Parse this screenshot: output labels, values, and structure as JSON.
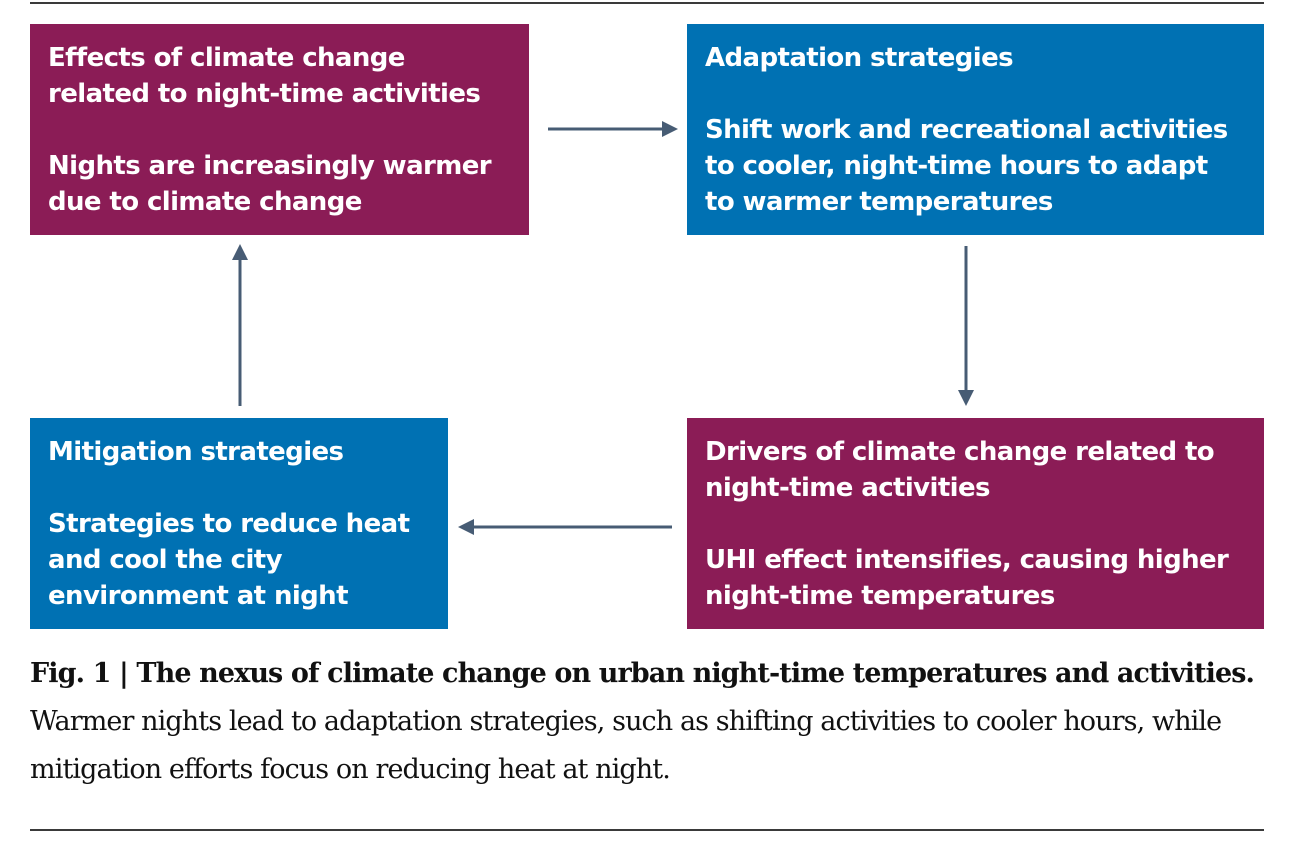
{
  "colors": {
    "effect_box": "#8b1c56",
    "strategy_box": "#0071b3",
    "arrow": "#475c74"
  },
  "boxes": {
    "effects": {
      "heading": [
        "Effects of climate change",
        "related to night-time activities"
      ],
      "body": [
        "Nights are increasingly warmer",
        "due to climate change"
      ]
    },
    "adaptation": {
      "heading": [
        "Adaptation strategies"
      ],
      "body": [
        "Shift work and recreational activities",
        "to cooler, night-time hours to adapt",
        "to warmer temperatures"
      ]
    },
    "mitigation": {
      "heading": [
        "Mitigation strategies"
      ],
      "body": [
        "Strategies to reduce heat",
        "and cool the city",
        "environment at night"
      ]
    },
    "drivers": {
      "heading": [
        "Drivers of climate change related to",
        "night-time activities"
      ],
      "body": [
        "UHI effect intensifies, causing higher",
        "night-time temperatures"
      ]
    }
  },
  "caption": {
    "label": "Fig. 1 | The nexus of climate change on urban night-time temperatures and activities.",
    "text": " Warmer nights lead to adaptation strategies, such as shifting activities to cooler hours, while mitigation efforts focus on reducing heat at night."
  }
}
